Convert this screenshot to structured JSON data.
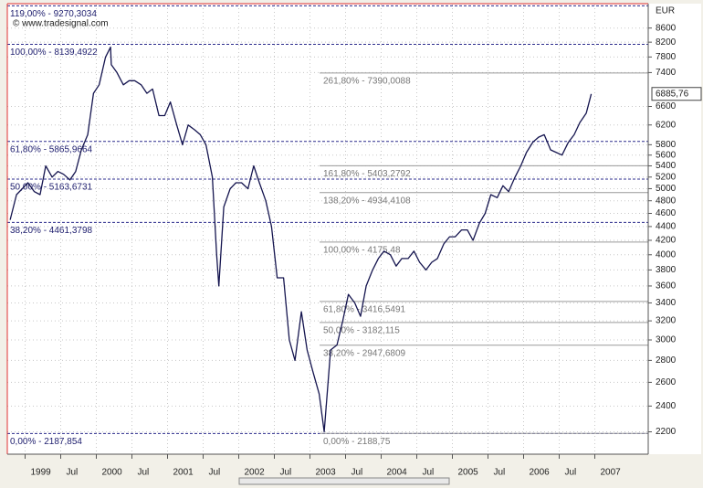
{
  "chart_data": {
    "type": "line",
    "axis_label": "EUR",
    "watermark": "© www.tradesignal.com",
    "x": [
      1998.79,
      1998.88,
      1998.96,
      1999.04,
      1999.13,
      1999.21,
      1999.29,
      1999.38,
      1999.46,
      1999.54,
      1999.63,
      1999.71,
      1999.79,
      1999.88,
      1999.96,
      2000.04,
      2000.13,
      2000.2,
      2000.21,
      2000.29,
      2000.38,
      2000.46,
      2000.54,
      2000.63,
      2000.71,
      2000.79,
      2000.88,
      2000.96,
      2001.04,
      2001.13,
      2001.21,
      2001.29,
      2001.38,
      2001.46,
      2001.54,
      2001.63,
      2001.69,
      2001.72,
      2001.79,
      2001.88,
      2001.96,
      2002.04,
      2002.13,
      2002.21,
      2002.29,
      2002.38,
      2002.46,
      2002.54,
      2002.63,
      2002.71,
      2002.79,
      2002.88,
      2002.96,
      2003.04,
      2003.13,
      2003.2,
      2003.29,
      2003.38,
      2003.46,
      2003.54,
      2003.63,
      2003.71,
      2003.79,
      2003.88,
      2003.96,
      2004.04,
      2004.13,
      2004.21,
      2004.29,
      2004.38,
      2004.46,
      2004.54,
      2004.63,
      2004.71,
      2004.79,
      2004.88,
      2004.96,
      2005.04,
      2005.13,
      2005.21,
      2005.29,
      2005.38,
      2005.46,
      2005.54,
      2005.63,
      2005.71,
      2005.79,
      2005.88,
      2005.96,
      2006.04,
      2006.13,
      2006.21,
      2006.29,
      2006.38,
      2006.46,
      2006.54,
      2006.63,
      2006.71,
      2006.79,
      2006.88,
      2006.95
    ],
    "series": [
      {
        "color": "#15154f",
        "values": [
          4500,
          4900,
          5000,
          5100,
          4950,
          4900,
          5400,
          5200,
          5300,
          5250,
          5150,
          5300,
          5700,
          6000,
          6900,
          7100,
          7800,
          8064,
          7600,
          7400,
          7100,
          7200,
          7200,
          7100,
          6900,
          7000,
          6400,
          6400,
          6700,
          6200,
          5800,
          6200,
          6100,
          6000,
          5800,
          5200,
          4000,
          3600,
          4700,
          5000,
          5100,
          5100,
          5000,
          5400,
          5100,
          4800,
          4400,
          3700,
          3700,
          3000,
          2800,
          3300,
          2900,
          2700,
          2500,
          2200,
          2900,
          2950,
          3200,
          3500,
          3400,
          3250,
          3600,
          3800,
          3950,
          4050,
          4000,
          3850,
          3950,
          3950,
          4050,
          3900,
          3800,
          3900,
          3950,
          4150,
          4250,
          4250,
          4350,
          4350,
          4200,
          4450,
          4600,
          4900,
          4850,
          5050,
          4950,
          5200,
          5400,
          5650,
          5850,
          5950,
          6000,
          5700,
          5650,
          5600,
          5850,
          6000,
          6250,
          6450,
          6885.76
        ]
      }
    ],
    "last_value_label": "6885,76",
    "log_scale": true,
    "grid": true,
    "ylim": [
      2040,
      9310
    ],
    "yticks": [
      2200,
      2400,
      2600,
      2800,
      3000,
      3200,
      3400,
      3600,
      3800,
      4000,
      4200,
      4400,
      4600,
      4800,
      5000,
      5200,
      5400,
      5600,
      5800,
      6200,
      6600,
      7400,
      7800,
      8200,
      8600
    ],
    "xlim": [
      1998.75,
      2007.75
    ],
    "xticks": [
      1999,
      {
        "value": 1999.5,
        "label": "Jul"
      },
      2000,
      {
        "value": 2000.5,
        "label": "Jul"
      },
      2001,
      {
        "value": 2001.5,
        "label": "Jul"
      },
      2002,
      {
        "value": 2002.5,
        "label": "Jul"
      },
      2003,
      {
        "value": 2003.5,
        "label": "Jul"
      },
      2004,
      {
        "value": 2004.5,
        "label": "Jul"
      },
      2005,
      {
        "value": 2005.5,
        "label": "Jul"
      },
      2006,
      {
        "value": 2006.5,
        "label": "Jul"
      },
      2007
    ],
    "retracements_left": {
      "color": "#2b2b8c",
      "levels": [
        {
          "value": 9270.3034,
          "label": "119,00% - 9270,3034"
        },
        {
          "value": 8139.4922,
          "label": "100,00% - 8139,4922"
        },
        {
          "value": 5865.9664,
          "label": "61,80% - 5865,9664"
        },
        {
          "value": 5163.6731,
          "label": "50,00% - 5163,6731"
        },
        {
          "value": 4461.3798,
          "label": "38,20% - 4461,3798"
        },
        {
          "value": 2187.854,
          "label": "0,00% - 2187,854"
        }
      ]
    },
    "retracements_right": {
      "color": "#9a9a9a",
      "levels": [
        {
          "value": 7390.0088,
          "label": "261,80% - 7390,0088"
        },
        {
          "value": 5403.2792,
          "label": "161,80% - 5403,2792"
        },
        {
          "value": 4934.4108,
          "label": "138,20% - 4934,4108"
        },
        {
          "value": 4175.48,
          "label": "100,00% - 4175,48"
        },
        {
          "value": 3416.5491,
          "label": "61,80% - 3416,5491"
        },
        {
          "value": 3182.115,
          "label": "50,00% - 3182,115"
        },
        {
          "value": 2947.6809,
          "label": "38,20% - 2947,6809"
        },
        {
          "value": 2188.75,
          "label": "0,00% - 2188,75"
        }
      ]
    }
  }
}
